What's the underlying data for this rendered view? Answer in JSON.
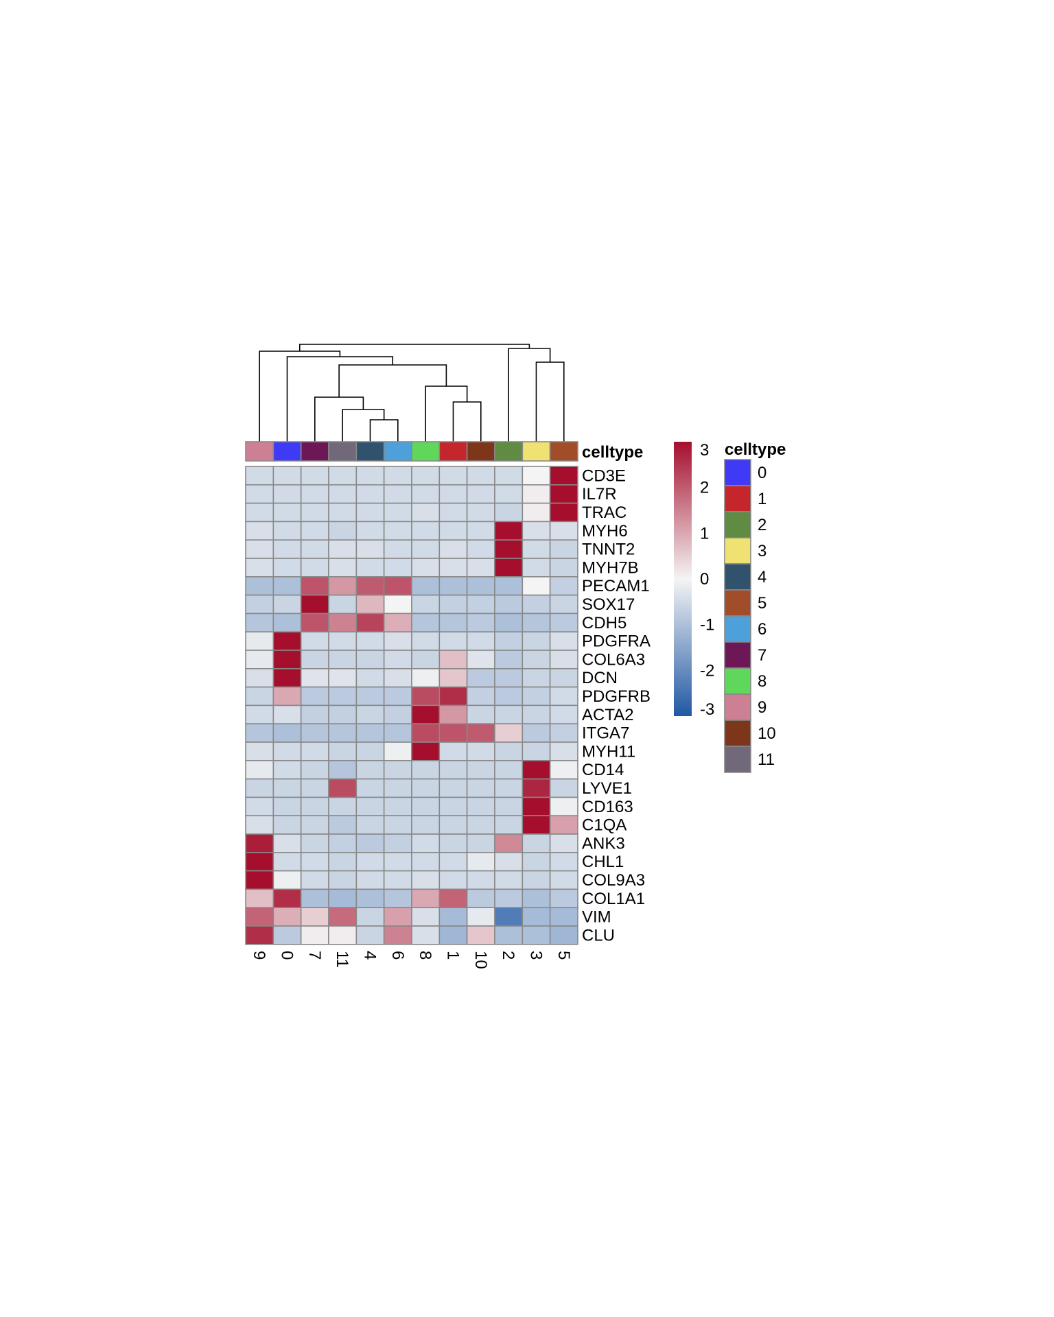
{
  "chart_data": {
    "type": "heatmap",
    "title": "",
    "columns": [
      "9",
      "0",
      "7",
      "11",
      "4",
      "6",
      "8",
      "1",
      "10",
      "2",
      "3",
      "5"
    ],
    "rows": [
      "CD3E",
      "IL7R",
      "TRAC",
      "MYH6",
      "TNNT2",
      "MYH7B",
      "PECAM1",
      "SOX17",
      "CDH5",
      "PDGFRA",
      "COL6A3",
      "DCN",
      "PDGFRB",
      "ACTA2",
      "ITGA7",
      "MYH11",
      "CD14",
      "LYVE1",
      "CD163",
      "C1QA",
      "ANK3",
      "CHL1",
      "COL9A3",
      "COL1A1",
      "VIM",
      "CLU"
    ],
    "values": [
      [
        -0.5,
        -0.5,
        -0.5,
        -0.5,
        -0.5,
        -0.5,
        -0.5,
        -0.5,
        -0.5,
        -0.5,
        0.0,
        3.0
      ],
      [
        -0.5,
        -0.5,
        -0.5,
        -0.5,
        -0.5,
        -0.5,
        -0.5,
        -0.5,
        -0.5,
        -0.5,
        0.1,
        3.0
      ],
      [
        -0.5,
        -0.5,
        -0.5,
        -0.5,
        -0.5,
        -0.5,
        -0.4,
        -0.5,
        -0.5,
        -0.6,
        0.1,
        3.0
      ],
      [
        -0.4,
        -0.5,
        -0.5,
        -0.6,
        -0.5,
        -0.5,
        -0.5,
        -0.5,
        -0.5,
        3.0,
        -0.4,
        -0.4
      ],
      [
        -0.4,
        -0.5,
        -0.5,
        -0.4,
        -0.4,
        -0.5,
        -0.5,
        -0.4,
        -0.5,
        3.0,
        -0.5,
        -0.6
      ],
      [
        -0.4,
        -0.5,
        -0.5,
        -0.4,
        -0.5,
        -0.5,
        -0.4,
        -0.4,
        -0.4,
        3.0,
        -0.5,
        -0.6
      ],
      [
        -1.0,
        -1.0,
        2.1,
        1.2,
        2.0,
        2.1,
        -1.0,
        -1.0,
        -1.0,
        -1.0,
        0.0,
        -0.7
      ],
      [
        -0.7,
        -0.6,
        3.0,
        -0.6,
        0.8,
        0.0,
        -0.6,
        -0.7,
        -0.7,
        -0.8,
        -0.7,
        -0.6
      ],
      [
        -0.9,
        -1.0,
        2.1,
        1.5,
        2.3,
        0.9,
        -0.9,
        -0.9,
        -0.8,
        -1.0,
        -0.9,
        -0.8
      ],
      [
        -0.2,
        3.0,
        -0.5,
        -0.5,
        -0.5,
        -0.4,
        -0.5,
        -0.5,
        -0.5,
        -0.7,
        -0.6,
        -0.4
      ],
      [
        -0.2,
        3.0,
        -0.6,
        -0.6,
        -0.6,
        -0.5,
        -0.6,
        0.7,
        -0.3,
        -0.8,
        -0.6,
        -0.4
      ],
      [
        -0.4,
        3.0,
        -0.3,
        -0.3,
        -0.5,
        -0.4,
        -0.1,
        0.6,
        -0.8,
        -0.8,
        -0.6,
        -0.6
      ],
      [
        -0.6,
        1.0,
        -0.8,
        -0.8,
        -0.8,
        -0.8,
        2.2,
        2.6,
        -0.7,
        -0.8,
        -0.7,
        -0.5
      ],
      [
        -0.5,
        -0.4,
        -0.7,
        -0.7,
        -0.6,
        -0.7,
        3.0,
        1.2,
        -0.6,
        -0.6,
        -0.6,
        -0.5
      ],
      [
        -0.9,
        -1.0,
        -0.9,
        -0.9,
        -0.9,
        -0.9,
        2.2,
        2.1,
        2.0,
        0.5,
        -0.8,
        -0.7
      ],
      [
        -0.4,
        -0.5,
        -0.5,
        -0.6,
        -0.6,
        -0.1,
        3.0,
        -0.5,
        -0.5,
        -0.6,
        -0.6,
        -0.4
      ],
      [
        -0.2,
        -0.5,
        -0.6,
        -0.9,
        -0.6,
        -0.6,
        -0.6,
        -0.6,
        -0.6,
        -0.6,
        3.0,
        -0.1
      ],
      [
        -0.6,
        -0.6,
        -0.6,
        2.2,
        -0.6,
        -0.6,
        -0.6,
        -0.6,
        -0.6,
        -0.6,
        2.7,
        -0.6
      ],
      [
        -0.5,
        -0.6,
        -0.6,
        -0.6,
        -0.6,
        -0.6,
        -0.6,
        -0.6,
        -0.6,
        -0.6,
        3.0,
        -0.1
      ],
      [
        -0.4,
        -0.6,
        -0.6,
        -0.8,
        -0.6,
        -0.6,
        -0.6,
        -0.6,
        -0.6,
        -0.6,
        3.0,
        1.1
      ],
      [
        2.8,
        -0.4,
        -0.6,
        -0.7,
        -0.8,
        -0.7,
        -0.5,
        -0.6,
        -0.6,
        1.4,
        -0.6,
        -0.4
      ],
      [
        3.0,
        -0.5,
        -0.5,
        -0.6,
        -0.5,
        -0.5,
        -0.5,
        -0.5,
        -0.2,
        -0.4,
        -0.6,
        -0.5
      ],
      [
        3.0,
        -0.1,
        -0.5,
        -0.6,
        -0.5,
        -0.5,
        -0.4,
        -0.5,
        -0.5,
        -0.5,
        -0.6,
        -0.5
      ],
      [
        0.7,
        2.6,
        -1.0,
        -1.1,
        -1.0,
        -0.9,
        1.0,
        1.9,
        -0.8,
        -0.8,
        -1.0,
        -0.8
      ],
      [
        1.9,
        0.9,
        0.5,
        1.8,
        -0.6,
        1.1,
        -0.4,
        -1.1,
        -0.2,
        -2.3,
        -1.1,
        -1.1
      ],
      [
        2.6,
        -0.8,
        0.1,
        0.1,
        -0.6,
        1.5,
        -0.4,
        -1.2,
        0.6,
        -1.0,
        -1.0,
        -1.2
      ]
    ],
    "column_annotation": {
      "name": "celltype",
      "values": [
        "9",
        "0",
        "7",
        "11",
        "4",
        "6",
        "8",
        "1",
        "10",
        "2",
        "3",
        "5"
      ]
    },
    "legend": {
      "title": "celltype",
      "entries": [
        {
          "label": "0",
          "color": "#3f3af5"
        },
        {
          "label": "1",
          "color": "#c4262b"
        },
        {
          "label": "2",
          "color": "#5f8b43"
        },
        {
          "label": "3",
          "color": "#efe273"
        },
        {
          "label": "4",
          "color": "#31526d"
        },
        {
          "label": "5",
          "color": "#a24d29"
        },
        {
          "label": "6",
          "color": "#4ea0db"
        },
        {
          "label": "7",
          "color": "#6e1756"
        },
        {
          "label": "8",
          "color": "#5fd75b"
        },
        {
          "label": "9",
          "color": "#cd8094"
        },
        {
          "label": "10",
          "color": "#7e361b"
        },
        {
          "label": "11",
          "color": "#71687a"
        }
      ]
    },
    "colorbar": {
      "ticks": [
        3,
        2,
        1,
        0,
        -1,
        -2,
        -3
      ],
      "range": [
        -3,
        3
      ],
      "stops": [
        {
          "value": -3,
          "color": "#2058a4"
        },
        {
          "value": 0,
          "color": "#f4f4f4"
        },
        {
          "value": 3,
          "color": "#a50f2d"
        }
      ]
    },
    "dendrogram_order": [
      "9",
      "0",
      "7",
      "11",
      "4",
      "6",
      "8",
      "1",
      "10",
      "2",
      "3",
      "5"
    ],
    "cell_border_color": "#888888"
  }
}
